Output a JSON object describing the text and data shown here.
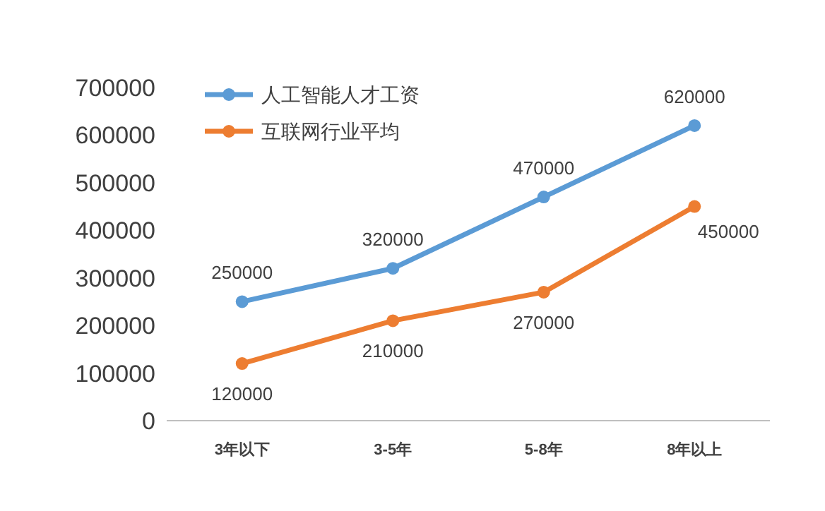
{
  "chart_data": {
    "type": "line",
    "categories": [
      "3年以下",
      "3-5年",
      "5-8年",
      "8年以上"
    ],
    "series": [
      {
        "name": "人工智能人才工资",
        "color": "#5b9bd5",
        "values": [
          250000,
          320000,
          470000,
          620000
        ]
      },
      {
        "name": "互联网行业平均",
        "color": "#ed7d31",
        "values": [
          120000,
          210000,
          270000,
          450000
        ]
      }
    ],
    "ylim": [
      0,
      700000
    ],
    "yticks": [
      0,
      100000,
      200000,
      300000,
      400000,
      500000,
      600000,
      700000
    ],
    "data_labels": true,
    "legend": "top left",
    "marker": "circle",
    "grid": false
  }
}
